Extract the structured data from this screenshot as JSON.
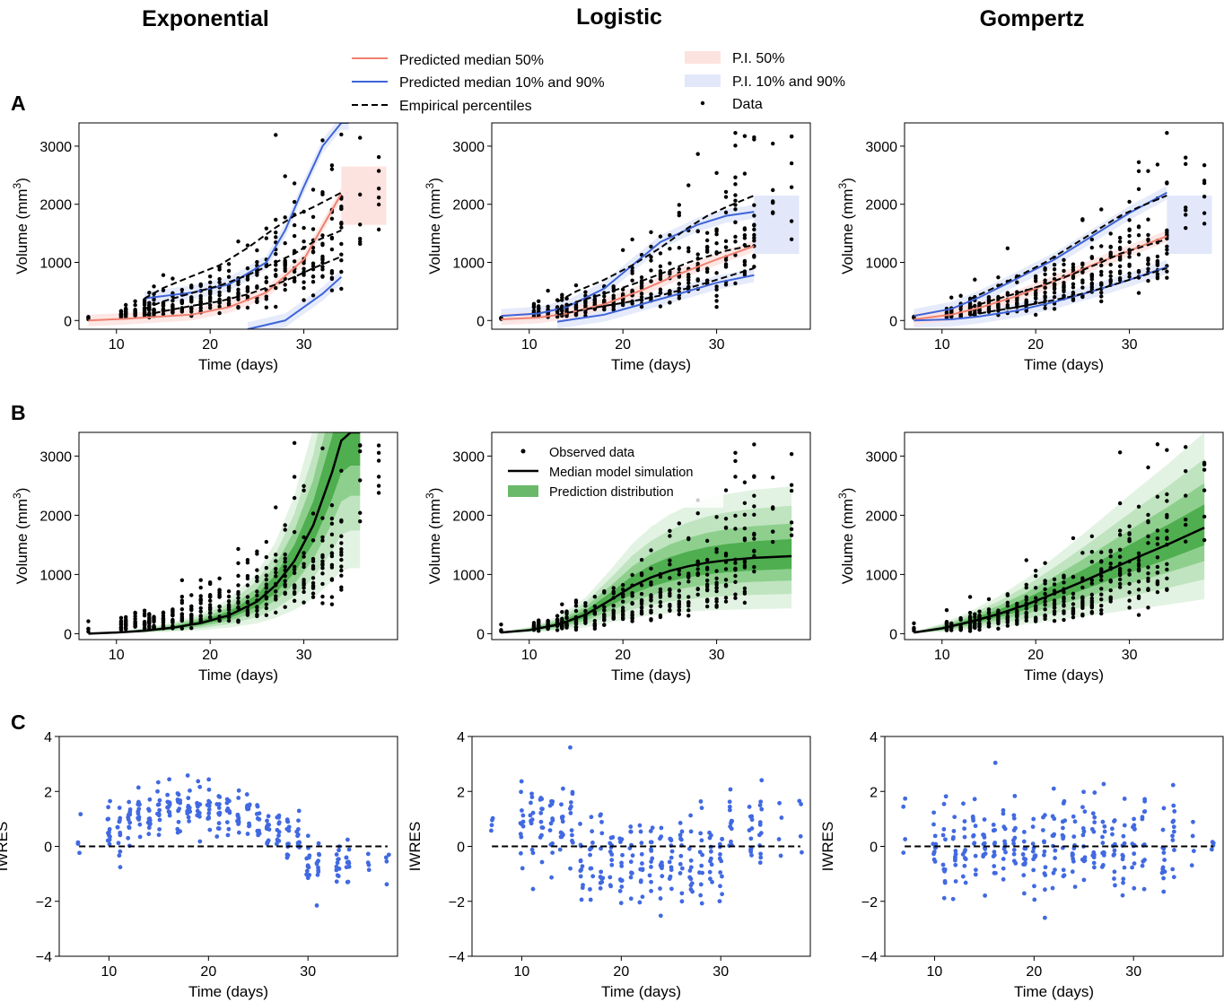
{
  "columns": [
    "Exponential",
    "Logistic",
    "Gompertz"
  ],
  "row_labels": [
    "A",
    "B",
    "C"
  ],
  "legend_top": {
    "lines": [
      {
        "label": "Predicted median 50%",
        "color": "#f08070",
        "dash": "solid"
      },
      {
        "label": "Predicted median 10% and 90%",
        "color": "#3e64d8",
        "dash": "solid"
      },
      {
        "label": "Empirical percentiles",
        "color": "#000000",
        "dash": "dashed"
      }
    ],
    "patches": [
      {
        "label": "P.I. 50%",
        "color": "#fde3df"
      },
      {
        "label": "P.I. 10% and 90%",
        "color": "#e2e8fa"
      }
    ],
    "markers": [
      {
        "label": "Data",
        "color": "#000000"
      }
    ]
  },
  "legend_B": {
    "items": [
      {
        "label": "Observed data",
        "kind": "marker"
      },
      {
        "label": "Median model simulation",
        "kind": "line"
      },
      {
        "label": "Prediction distribution",
        "kind": "patch",
        "color": "#6ab96a"
      }
    ]
  },
  "colors": {
    "data": "#000000",
    "iwres": "#4169e1",
    "green_dark": "#1e7a1e",
    "green_light": "#d8efd8"
  },
  "chart_data": [
    {
      "panel": "A",
      "type": "line",
      "model": "Exponential",
      "xlabel": "Time (days)",
      "ylabel": "Volume (mm",
      "ylabel_sup": "3",
      "ylabel_end": ")",
      "xlim": [
        6,
        40
      ],
      "ylim": [
        -150,
        3400
      ],
      "xticks": [
        10,
        20,
        30
      ],
      "yticks": [
        0,
        1000,
        2000,
        3000
      ],
      "series": [
        {
          "name": "Predicted median 50%",
          "x": [
            7,
            11,
            14,
            18,
            22,
            26,
            30,
            34
          ],
          "y": [
            0,
            30,
            60,
            100,
            230,
            480,
            1050,
            2180
          ]
        },
        {
          "name": "Predicted median 10% and 90%",
          "x": [
            13,
            18,
            22,
            26,
            28,
            30,
            32,
            34,
            34.8
          ],
          "y": [
            380,
            480,
            620,
            1000,
            1550,
            2300,
            3000,
            3400,
            3400
          ]
        },
        {
          "name": "Predicted median 10% and 90%",
          "x": [
            24,
            28,
            32,
            34
          ],
          "y": [
            -150,
            0,
            460,
            750
          ]
        },
        {
          "name": "Empirical percentiles",
          "x": [
            13,
            15,
            18,
            21,
            24,
            27,
            29,
            31,
            34
          ],
          "y": [
            380,
            560,
            760,
            950,
            1250,
            1600,
            1800,
            1950,
            2200
          ]
        },
        {
          "name": "Empirical percentiles",
          "x": [
            13,
            15,
            18,
            21,
            24,
            27,
            29,
            31,
            34
          ],
          "y": [
            200,
            330,
            470,
            600,
            780,
            1000,
            1150,
            1350,
            1550
          ]
        },
        {
          "name": "Empirical percentiles",
          "x": [
            13,
            15,
            18,
            21,
            24,
            27,
            29,
            31,
            34
          ],
          "y": [
            90,
            160,
            250,
            330,
            450,
            620,
            750,
            900,
            1100
          ]
        }
      ]
    },
    {
      "panel": "A",
      "type": "line",
      "model": "Logistic",
      "xlabel": "Time (days)",
      "ylabel": "Volume (mm",
      "ylabel_sup": "3",
      "ylabel_end": ")",
      "xlim": [
        6,
        40
      ],
      "ylim": [
        -150,
        3400
      ],
      "xticks": [
        10,
        20,
        30
      ],
      "yticks": [
        0,
        1000,
        2000,
        3000
      ],
      "series": [
        {
          "name": "Predicted median 50%",
          "x": [
            7,
            11,
            14,
            18,
            22,
            26,
            30,
            34
          ],
          "y": [
            20,
            50,
            120,
            280,
            520,
            800,
            1050,
            1280
          ]
        },
        {
          "name": "Predicted median 10% and 90%",
          "x": [
            7,
            11,
            14,
            18,
            21,
            24,
            28,
            31,
            34
          ],
          "y": [
            80,
            120,
            230,
            550,
            950,
            1350,
            1650,
            1800,
            1870
          ]
        },
        {
          "name": "Predicted median 10% and 90%",
          "x": [
            13,
            18,
            22,
            26,
            30,
            34
          ],
          "y": [
            -20,
            100,
            280,
            460,
            650,
            780
          ]
        },
        {
          "name": "Empirical percentiles",
          "x": [
            13,
            15,
            18,
            21,
            24,
            27,
            29,
            31,
            34
          ],
          "y": [
            320,
            500,
            700,
            950,
            1250,
            1600,
            1800,
            1950,
            2150
          ]
        },
        {
          "name": "Empirical percentiles",
          "x": [
            13,
            15,
            18,
            21,
            24,
            27,
            29,
            31,
            34
          ],
          "y": [
            180,
            320,
            460,
            620,
            800,
            1000,
            1100,
            1200,
            1300
          ]
        },
        {
          "name": "Empirical percentiles",
          "x": [
            13,
            15,
            18,
            21,
            24,
            27,
            29,
            31,
            34
          ],
          "y": [
            100,
            160,
            250,
            330,
            430,
            560,
            650,
            750,
            900
          ]
        }
      ]
    },
    {
      "panel": "A",
      "type": "line",
      "model": "Gompertz",
      "xlabel": "Time (days)",
      "ylabel": "Volume (mm",
      "ylabel_sup": "3",
      "ylabel_end": ")",
      "xlim": [
        6,
        40
      ],
      "ylim": [
        -150,
        3400
      ],
      "xticks": [
        10,
        20,
        30
      ],
      "yticks": [
        0,
        1000,
        2000,
        3000
      ],
      "series": [
        {
          "name": "Predicted median 50%",
          "x": [
            7,
            11,
            14,
            18,
            22,
            26,
            30,
            34
          ],
          "y": [
            20,
            100,
            220,
            420,
            680,
            950,
            1200,
            1450
          ]
        },
        {
          "name": "Predicted median 10% and 90%",
          "x": [
            7,
            11,
            14,
            18,
            22,
            26,
            30,
            34
          ],
          "y": [
            80,
            200,
            400,
            720,
            1050,
            1450,
            1850,
            2200
          ]
        },
        {
          "name": "Predicted median 10% and 90%",
          "x": [
            7,
            11,
            14,
            18,
            22,
            26,
            30,
            34
          ],
          "y": [
            0,
            20,
            70,
            170,
            320,
            500,
            700,
            920
          ]
        },
        {
          "name": "Empirical percentiles",
          "x": [
            13,
            15,
            18,
            21,
            24,
            27,
            29,
            31,
            34
          ],
          "y": [
            370,
            520,
            750,
            1000,
            1300,
            1600,
            1800,
            1950,
            2150
          ]
        },
        {
          "name": "Empirical percentiles",
          "x": [
            13,
            15,
            18,
            21,
            24,
            27,
            29,
            31,
            34
          ],
          "y": [
            220,
            330,
            470,
            620,
            800,
            1000,
            1150,
            1250,
            1400
          ]
        },
        {
          "name": "Empirical percentiles",
          "x": [
            13,
            15,
            18,
            21,
            24,
            27,
            29,
            31,
            34
          ],
          "y": [
            90,
            150,
            230,
            320,
            420,
            550,
            650,
            750,
            900
          ]
        }
      ]
    },
    {
      "panel": "B",
      "type": "area",
      "model": "Exponential",
      "xlabel": "Time (days)",
      "ylabel": "Volume (mm",
      "ylabel_sup": "3",
      "ylabel_end": ")",
      "xlim": [
        6,
        40
      ],
      "ylim": [
        -100,
        3400
      ],
      "xticks": [
        10,
        20,
        30
      ],
      "yticks": [
        0,
        1000,
        2000,
        3000
      ],
      "median": {
        "x": [
          7,
          10,
          13,
          16,
          19,
          22,
          25,
          27,
          29,
          31,
          33,
          34,
          35,
          36
        ],
        "y": [
          0,
          20,
          50,
          100,
          180,
          310,
          540,
          820,
          1230,
          1830,
          2720,
          3260,
          3400,
          3400
        ]
      }
    },
    {
      "panel": "B",
      "type": "area",
      "model": "Logistic",
      "xlabel": "Time (days)",
      "ylabel": "Volume (mm",
      "ylabel_sup": "3",
      "ylabel_end": ")",
      "xlim": [
        6,
        40
      ],
      "ylim": [
        -100,
        3400
      ],
      "xticks": [
        10,
        20,
        30
      ],
      "yticks": [
        0,
        1000,
        2000,
        3000
      ],
      "median": {
        "x": [
          7,
          10,
          13,
          16,
          19,
          21,
          23,
          25,
          27,
          29,
          31,
          34,
          38
        ],
        "y": [
          20,
          60,
          150,
          320,
          600,
          800,
          950,
          1060,
          1140,
          1200,
          1240,
          1280,
          1310
        ]
      }
    },
    {
      "panel": "B",
      "type": "area",
      "model": "Gompertz",
      "xlabel": "Time (days)",
      "ylabel": "Volume (mm",
      "ylabel_sup": "3",
      "ylabel_end": ")",
      "xlim": [
        6,
        40
      ],
      "ylim": [
        -100,
        3400
      ],
      "xticks": [
        10,
        20,
        30
      ],
      "yticks": [
        0,
        1000,
        2000,
        3000
      ],
      "median": {
        "x": [
          7,
          10,
          13,
          16,
          19,
          22,
          25,
          28,
          31,
          34,
          38
        ],
        "y": [
          20,
          90,
          200,
          330,
          490,
          680,
          880,
          1090,
          1300,
          1500,
          1790
        ]
      }
    },
    {
      "panel": "C",
      "type": "scatter",
      "model": "Exponential",
      "xlabel": "Time (days)",
      "ylabel": "IWRES",
      "xlim": [
        5,
        39
      ],
      "ylim": [
        -4,
        4
      ],
      "xticks": [
        10,
        20,
        30
      ],
      "yticks": [
        -4,
        -2,
        0,
        2,
        4
      ],
      "reference_line": 0
    },
    {
      "panel": "C",
      "type": "scatter",
      "model": "Logistic",
      "xlabel": "Time (days)",
      "ylabel": "IWRES",
      "xlim": [
        5,
        39
      ],
      "ylim": [
        -4,
        4
      ],
      "xticks": [
        10,
        20,
        30
      ],
      "yticks": [
        -4,
        -2,
        0,
        2,
        4
      ],
      "reference_line": 0
    },
    {
      "panel": "C",
      "type": "scatter",
      "model": "Gompertz",
      "xlabel": "Time (days)",
      "ylabel": "IWRES",
      "xlim": [
        5,
        39
      ],
      "ylim": [
        -4,
        4
      ],
      "xticks": [
        10,
        20,
        30
      ],
      "yticks": [
        -4,
        -2,
        0,
        2,
        4
      ],
      "reference_line": 0
    }
  ]
}
